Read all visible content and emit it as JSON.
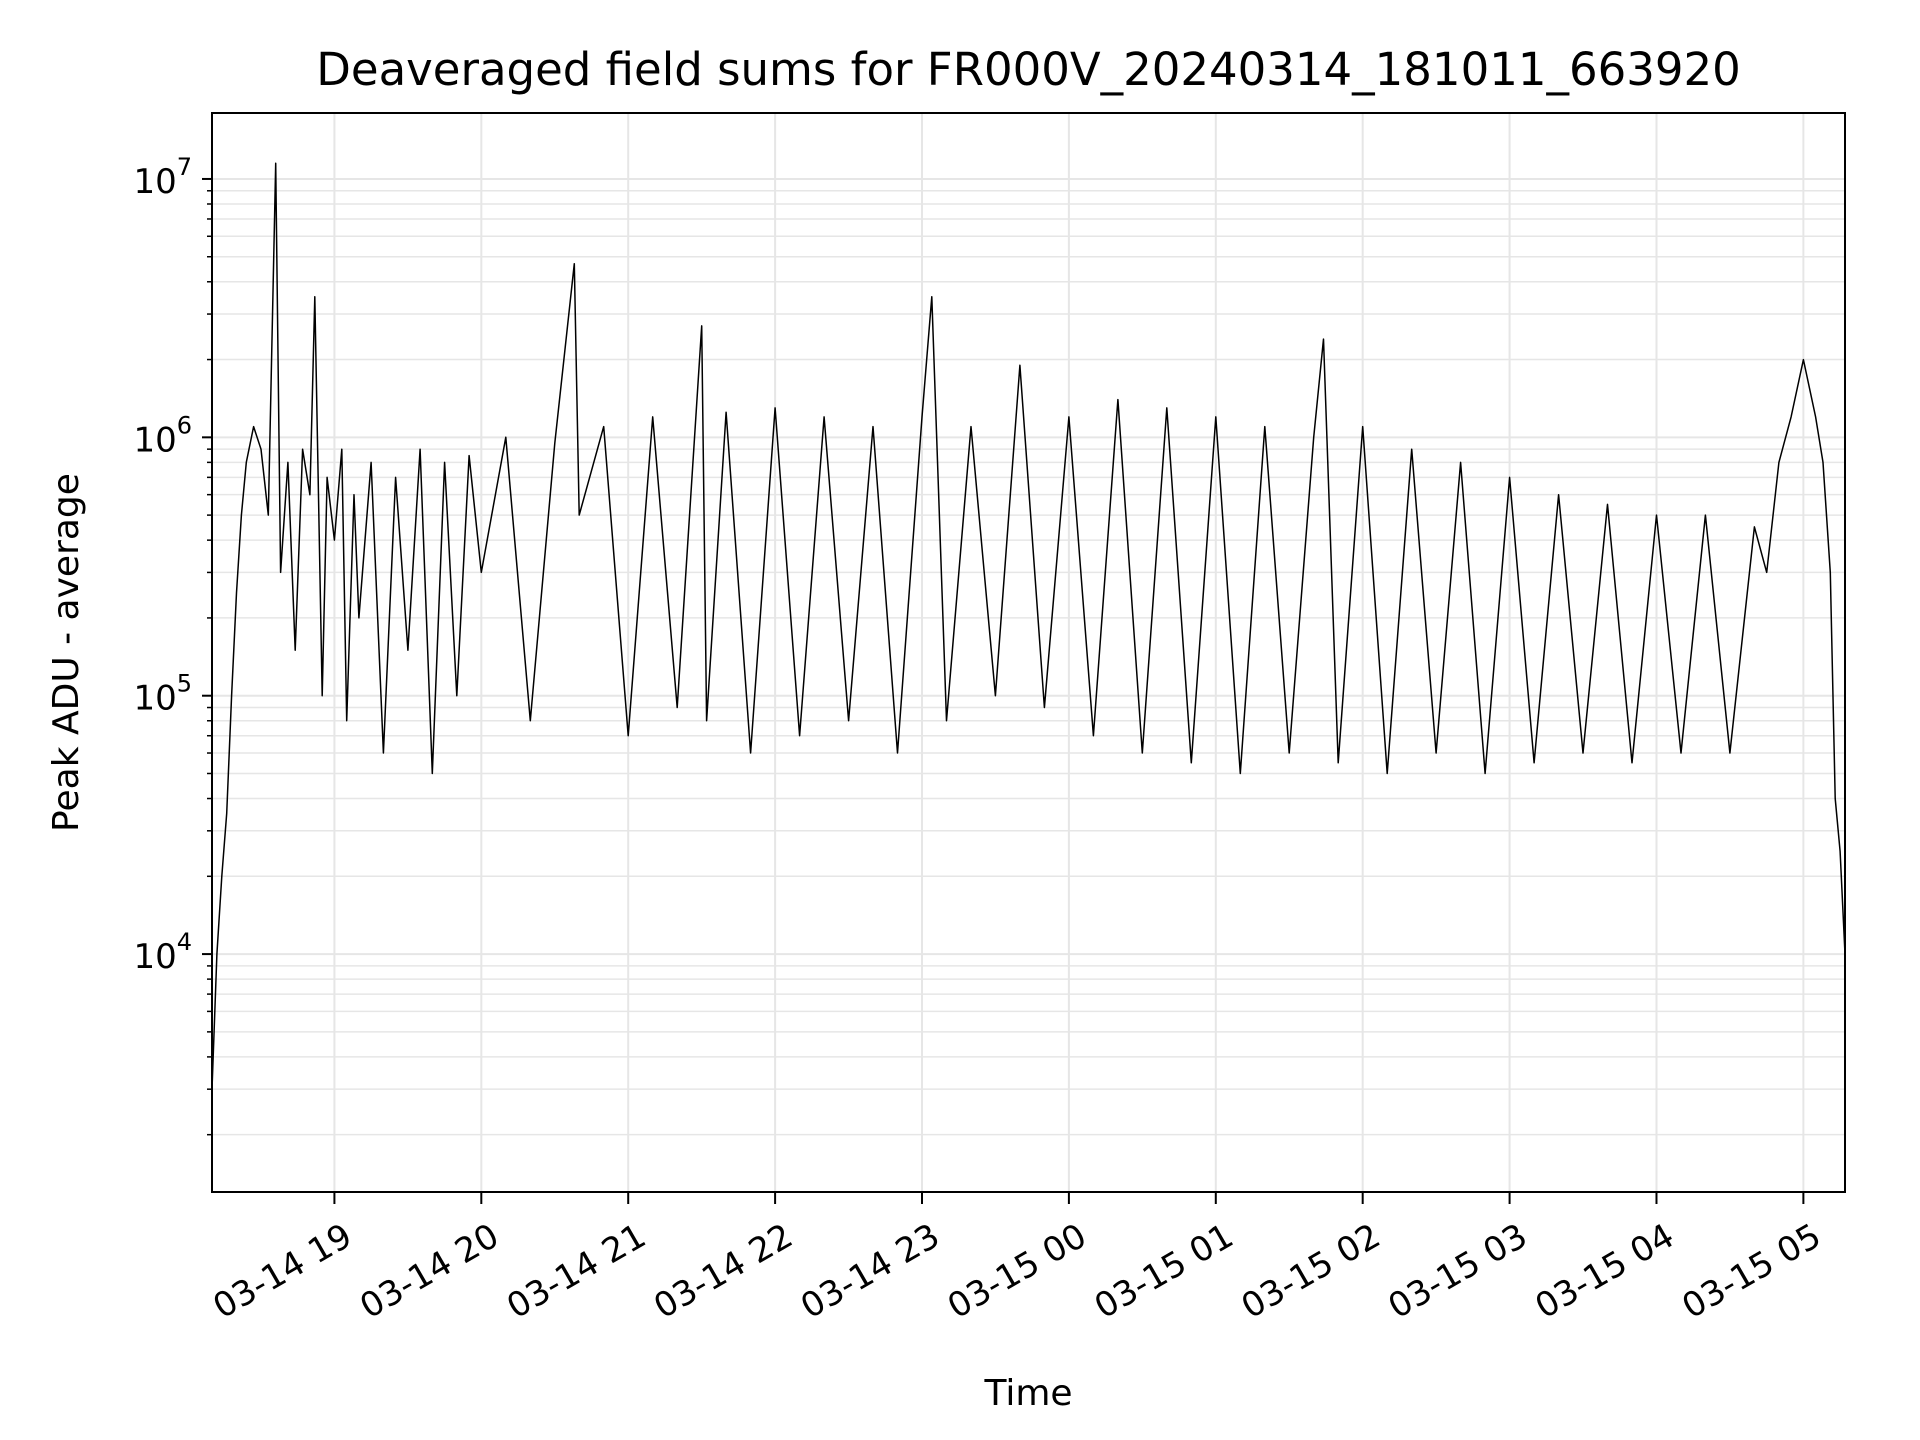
{
  "chart_data": {
    "type": "line",
    "title": "Deaveraged field sums for FR000V_20240314_181011_663920",
    "xlabel": "Time",
    "ylabel": "Peak ADU - average",
    "y_scale": "log",
    "ylim": [
      1200,
      18000000
    ],
    "xlim": [
      "03-14 18:10",
      "03-15 05:17"
    ],
    "grid": true,
    "line_color": "#000000",
    "x_ticks": [
      "03-14 19",
      "03-14 20",
      "03-14 21",
      "03-14 22",
      "03-14 23",
      "03-15 00",
      "03-15 01",
      "03-15 02",
      "03-15 03",
      "03-15 04",
      "03-15 05"
    ],
    "y_ticks": [
      {
        "base": "10",
        "exp": "4"
      },
      {
        "base": "10",
        "exp": "5"
      },
      {
        "base": "10",
        "exp": "6"
      },
      {
        "base": "10",
        "exp": "7"
      }
    ],
    "series": [
      {
        "x": [
          "03-14 18:10",
          "03-14 18:12",
          "03-14 18:14",
          "03-14 18:16",
          "03-14 18:18",
          "03-14 18:20",
          "03-14 18:22",
          "03-14 18:24",
          "03-14 18:27",
          "03-14 18:30",
          "03-14 18:33",
          "03-14 18:36",
          "03-14 18:38",
          "03-14 18:41",
          "03-14 18:44",
          "03-14 18:47",
          "03-14 18:50",
          "03-14 18:52",
          "03-14 18:55",
          "03-14 18:57",
          "03-14 19:00",
          "03-14 19:03",
          "03-14 19:05",
          "03-14 19:08",
          "03-14 19:10",
          "03-14 19:15",
          "03-14 19:20",
          "03-14 19:25",
          "03-14 19:30",
          "03-14 19:35",
          "03-14 19:40",
          "03-14 19:45",
          "03-14 19:50",
          "03-14 19:55",
          "03-14 20:00",
          "03-14 20:10",
          "03-14 20:20",
          "03-14 20:30",
          "03-14 20:38",
          "03-14 20:40",
          "03-14 20:50",
          "03-14 21:00",
          "03-14 21:10",
          "03-14 21:20",
          "03-14 21:30",
          "03-14 21:32",
          "03-14 21:40",
          "03-14 21:50",
          "03-14 22:00",
          "03-14 22:10",
          "03-14 22:20",
          "03-14 22:30",
          "03-14 22:40",
          "03-14 22:50",
          "03-14 23:00",
          "03-14 23:04",
          "03-14 23:10",
          "03-14 23:20",
          "03-14 23:30",
          "03-14 23:40",
          "03-14 23:50",
          "03-15 00:00",
          "03-15 00:10",
          "03-15 00:20",
          "03-15 00:30",
          "03-15 00:40",
          "03-15 00:50",
          "03-15 01:00",
          "03-15 01:10",
          "03-15 01:20",
          "03-15 01:30",
          "03-15 01:40",
          "03-15 01:44",
          "03-15 01:50",
          "03-15 02:00",
          "03-15 02:10",
          "03-15 02:20",
          "03-15 02:30",
          "03-15 02:40",
          "03-15 02:50",
          "03-15 03:00",
          "03-15 03:10",
          "03-15 03:20",
          "03-15 03:30",
          "03-15 03:40",
          "03-15 03:50",
          "03-15 04:00",
          "03-15 04:10",
          "03-15 04:20",
          "03-15 04:30",
          "03-15 04:40",
          "03-15 04:45",
          "03-15 04:50",
          "03-15 04:55",
          "03-15 05:00",
          "03-15 05:05",
          "03-15 05:08",
          "03-15 05:11",
          "03-15 05:13",
          "03-15 05:15",
          "03-15 05:17"
        ],
        "y": [
          3000,
          10000,
          20000,
          35000,
          100000,
          250000,
          500000,
          800000,
          1100000,
          900000,
          500000,
          11500000,
          300000,
          800000,
          150000,
          900000,
          600000,
          3500000,
          100000,
          700000,
          400000,
          900000,
          80000,
          600000,
          200000,
          800000,
          60000,
          700000,
          150000,
          900000,
          50000,
          800000,
          100000,
          850000,
          300000,
          1000000,
          80000,
          950000,
          4700000,
          500000,
          1100000,
          70000,
          1200000,
          90000,
          2700000,
          80000,
          1250000,
          60000,
          1300000,
          70000,
          1200000,
          80000,
          1100000,
          60000,
          1200000,
          3500000,
          80000,
          1100000,
          100000,
          1900000,
          90000,
          1200000,
          70000,
          1400000,
          60000,
          1300000,
          55000,
          1200000,
          50000,
          1100000,
          60000,
          1000000,
          2400000,
          55000,
          1100000,
          50000,
          900000,
          60000,
          800000,
          50000,
          700000,
          55000,
          600000,
          60000,
          550000,
          55000,
          500000,
          60000,
          500000,
          60000,
          450000,
          300000,
          800000,
          1200000,
          2000000,
          1200000,
          800000,
          300000,
          40000,
          25000,
          10000
        ]
      }
    ]
  }
}
